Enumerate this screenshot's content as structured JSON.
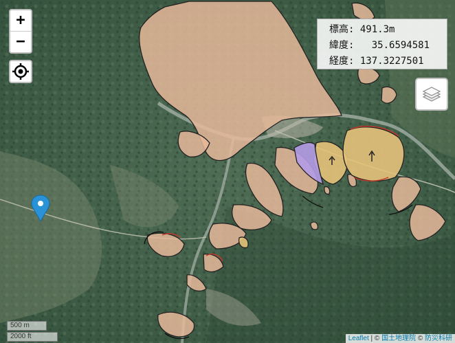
{
  "map": {
    "zoom_in_label": "+",
    "zoom_out_label": "−",
    "icons": {
      "locate": "crosshair-icon",
      "layers": "layers-icon",
      "marker": "map-marker-icon"
    },
    "colors": {
      "landslide_fill": "#e6b99a",
      "highlight_fill": "#e6c27a",
      "purple_fill": "#b49be6",
      "outline": "#222222",
      "scarp": "#c0392b"
    },
    "info": {
      "elevation_label": "標高:",
      "elevation_value": "491.3m",
      "latitude_label": "緯度:",
      "latitude_value": "35.6594581",
      "longitude_label": "経度:",
      "longitude_value": "137.3227501"
    },
    "scale": {
      "metric": "500 m",
      "imperial": "2000 ft"
    },
    "attribution": {
      "leaflet": "Leaflet",
      "separator1": " | © ",
      "gsi": "国土地理院",
      "separator2": " © ",
      "bosai": "防災科研"
    }
  }
}
